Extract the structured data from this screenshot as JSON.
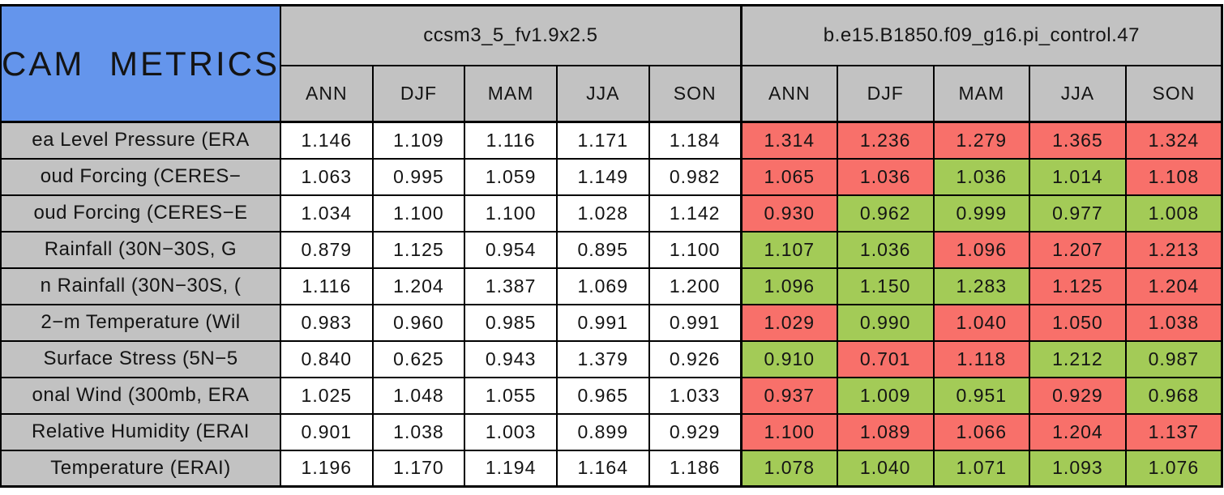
{
  "chart_data": {
    "type": "table",
    "title": "CAM METRICS",
    "groups": [
      {
        "label": "ccsm3_5_fv1.9x2.5",
        "seasons": [
          "ANN",
          "DJF",
          "MAM",
          "JJA",
          "SON"
        ]
      },
      {
        "label": "b.e15.B1850.f09_g16.pi_control.47",
        "seasons": [
          "ANN",
          "DJF",
          "MAM",
          "JJA",
          "SON"
        ]
      }
    ],
    "legend_note": "group1 cells are uncolored reference values; group2 cells are colored better (green) or worse (red)",
    "rows": [
      {
        "label": "ea Level Pressure (ERA",
        "group1_values": [
          "1.146",
          "1.109",
          "1.116",
          "1.171",
          "1.184"
        ],
        "group2_cells": [
          {
            "v": "1.314",
            "status": "worse"
          },
          {
            "v": "1.236",
            "status": "worse"
          },
          {
            "v": "1.279",
            "status": "worse"
          },
          {
            "v": "1.365",
            "status": "worse"
          },
          {
            "v": "1.324",
            "status": "worse"
          }
        ]
      },
      {
        "label": "oud Forcing (CERES−",
        "group1_values": [
          "1.063",
          "0.995",
          "1.059",
          "1.149",
          "0.982"
        ],
        "group2_cells": [
          {
            "v": "1.065",
            "status": "worse"
          },
          {
            "v": "1.036",
            "status": "worse"
          },
          {
            "v": "1.036",
            "status": "better"
          },
          {
            "v": "1.014",
            "status": "better"
          },
          {
            "v": "1.108",
            "status": "worse"
          }
        ]
      },
      {
        "label": "oud Forcing (CERES−E",
        "group1_values": [
          "1.034",
          "1.100",
          "1.100",
          "1.028",
          "1.142"
        ],
        "group2_cells": [
          {
            "v": "0.930",
            "status": "worse"
          },
          {
            "v": "0.962",
            "status": "better"
          },
          {
            "v": "0.999",
            "status": "better"
          },
          {
            "v": "0.977",
            "status": "better"
          },
          {
            "v": "1.008",
            "status": "better"
          }
        ]
      },
      {
        "label": "Rainfall (30N−30S, G",
        "group1_values": [
          "0.879",
          "1.125",
          "0.954",
          "0.895",
          "1.100"
        ],
        "group2_cells": [
          {
            "v": "1.107",
            "status": "better"
          },
          {
            "v": "1.036",
            "status": "better"
          },
          {
            "v": "1.096",
            "status": "worse"
          },
          {
            "v": "1.207",
            "status": "worse"
          },
          {
            "v": "1.213",
            "status": "worse"
          }
        ]
      },
      {
        "label": "n Rainfall (30N−30S, (",
        "group1_values": [
          "1.116",
          "1.204",
          "1.387",
          "1.069",
          "1.200"
        ],
        "group2_cells": [
          {
            "v": "1.096",
            "status": "better"
          },
          {
            "v": "1.150",
            "status": "better"
          },
          {
            "v": "1.283",
            "status": "better"
          },
          {
            "v": "1.125",
            "status": "worse"
          },
          {
            "v": "1.204",
            "status": "worse"
          }
        ]
      },
      {
        "label": "2−m Temperature (Wil",
        "group1_values": [
          "0.983",
          "0.960",
          "0.985",
          "0.991",
          "0.991"
        ],
        "group2_cells": [
          {
            "v": "1.029",
            "status": "worse"
          },
          {
            "v": "0.990",
            "status": "better"
          },
          {
            "v": "1.040",
            "status": "worse"
          },
          {
            "v": "1.050",
            "status": "worse"
          },
          {
            "v": "1.038",
            "status": "worse"
          }
        ]
      },
      {
        "label": "Surface Stress (5N−5",
        "group1_values": [
          "0.840",
          "0.625",
          "0.943",
          "1.379",
          "0.926"
        ],
        "group2_cells": [
          {
            "v": "0.910",
            "status": "better"
          },
          {
            "v": "0.701",
            "status": "worse"
          },
          {
            "v": "1.118",
            "status": "worse"
          },
          {
            "v": "1.212",
            "status": "better"
          },
          {
            "v": "0.987",
            "status": "better"
          }
        ]
      },
      {
        "label": "onal Wind (300mb, ERA",
        "group1_values": [
          "1.025",
          "1.048",
          "1.055",
          "0.965",
          "1.033"
        ],
        "group2_cells": [
          {
            "v": "0.937",
            "status": "worse"
          },
          {
            "v": "1.009",
            "status": "better"
          },
          {
            "v": "0.951",
            "status": "better"
          },
          {
            "v": "0.929",
            "status": "worse"
          },
          {
            "v": "0.968",
            "status": "better"
          }
        ]
      },
      {
        "label": "Relative Humidity (ERAI",
        "group1_values": [
          "0.901",
          "1.038",
          "1.003",
          "0.899",
          "0.929"
        ],
        "group2_cells": [
          {
            "v": "1.100",
            "status": "worse"
          },
          {
            "v": "1.089",
            "status": "worse"
          },
          {
            "v": "1.066",
            "status": "worse"
          },
          {
            "v": "1.204",
            "status": "worse"
          },
          {
            "v": "1.137",
            "status": "worse"
          }
        ]
      },
      {
        "label": "Temperature (ERAI)",
        "group1_values": [
          "1.196",
          "1.170",
          "1.194",
          "1.164",
          "1.186"
        ],
        "group2_cells": [
          {
            "v": "1.078",
            "status": "better"
          },
          {
            "v": "1.040",
            "status": "better"
          },
          {
            "v": "1.071",
            "status": "better"
          },
          {
            "v": "1.093",
            "status": "better"
          },
          {
            "v": "1.076",
            "status": "better"
          }
        ]
      }
    ]
  },
  "colors": {
    "corner_bg": "#6495ec",
    "header_bg": "#c2c2c2",
    "worse": "#f8706a",
    "better": "#a3cb57",
    "border": "#000000",
    "text": "#141414",
    "page_bg": "#ffffff"
  }
}
